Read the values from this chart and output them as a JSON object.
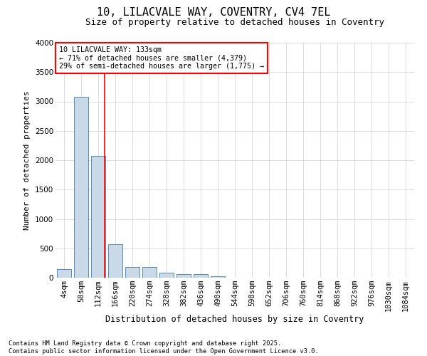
{
  "title": "10, LILACVALE WAY, COVENTRY, CV4 7EL",
  "subtitle": "Size of property relative to detached houses in Coventry",
  "xlabel": "Distribution of detached houses by size in Coventry",
  "ylabel": "Number of detached properties",
  "footnote1": "Contains HM Land Registry data © Crown copyright and database right 2025.",
  "footnote2": "Contains public sector information licensed under the Open Government Licence v3.0.",
  "bin_labels": [
    "4sqm",
    "58sqm",
    "112sqm",
    "166sqm",
    "220sqm",
    "274sqm",
    "328sqm",
    "382sqm",
    "436sqm",
    "490sqm",
    "544sqm",
    "598sqm",
    "652sqm",
    "706sqm",
    "760sqm",
    "814sqm",
    "868sqm",
    "922sqm",
    "976sqm",
    "1030sqm",
    "1084sqm"
  ],
  "bar_values": [
    150,
    3080,
    2070,
    570,
    185,
    185,
    80,
    55,
    55,
    30,
    5,
    0,
    0,
    0,
    0,
    0,
    0,
    0,
    0,
    0,
    0
  ],
  "bar_color": "#c9d9e8",
  "bar_edge_color": "#5a8ab5",
  "grid_color": "#d0d0d0",
  "background_color": "#ffffff",
  "vline_color": "red",
  "annotation_text": "10 LILACVALE WAY: 133sqm\n← 71% of detached houses are smaller (4,379)\n29% of semi-detached houses are larger (1,775) →",
  "ylim": [
    0,
    4000
  ],
  "yticks": [
    0,
    500,
    1000,
    1500,
    2000,
    2500,
    3000,
    3500,
    4000
  ],
  "title_fontsize": 11,
  "subtitle_fontsize": 9,
  "tick_fontsize": 7.5,
  "ylabel_fontsize": 8,
  "xlabel_fontsize": 8.5
}
